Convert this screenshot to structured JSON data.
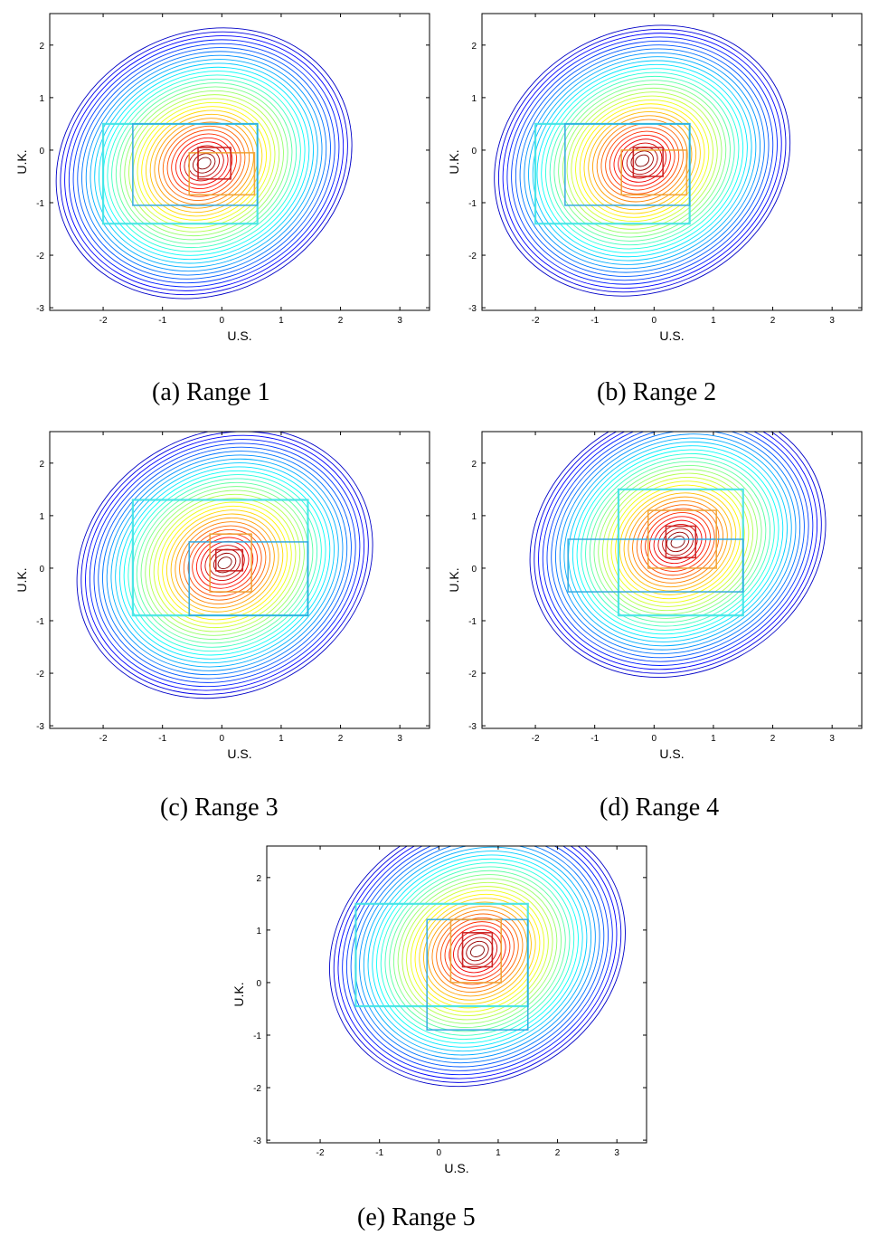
{
  "chart_data": [
    {
      "type": "contour",
      "caption": "(a) Range 1",
      "xlabel": "U.S.",
      "ylabel": "U.K.",
      "xlim": [
        -2.9,
        3.5
      ],
      "ylim": [
        -3.05,
        2.6
      ],
      "xticks": [
        -2,
        -1,
        0,
        1,
        2,
        3
      ],
      "yticks": [
        -3,
        -2,
        -1,
        0,
        1,
        2
      ],
      "peak": [
        -0.3,
        -0.25
      ],
      "boxes": [
        [
          -2.0,
          0.6,
          -1.4,
          0.5
        ],
        [
          -1.5,
          0.6,
          -1.05,
          0.5
        ],
        [
          -0.55,
          0.55,
          -0.85,
          -0.05
        ],
        [
          -0.4,
          0.15,
          -0.55,
          0.05
        ]
      ],
      "grid": false
    },
    {
      "type": "contour",
      "caption": "(b) Range 2",
      "xlabel": "U.S.",
      "ylabel": "U.K.",
      "xlim": [
        -2.9,
        3.5
      ],
      "ylim": [
        -3.05,
        2.6
      ],
      "xticks": [
        -2,
        -1,
        0,
        1,
        2,
        3
      ],
      "yticks": [
        -3,
        -2,
        -1,
        0,
        1,
        2
      ],
      "peak": [
        -0.2,
        -0.2
      ],
      "boxes": [
        [
          -2.0,
          0.6,
          -1.4,
          0.5
        ],
        [
          -1.5,
          0.6,
          -1.05,
          0.5
        ],
        [
          -0.55,
          0.55,
          -0.85,
          0.0
        ],
        [
          -0.35,
          0.15,
          -0.5,
          0.05
        ]
      ],
      "grid": false
    },
    {
      "type": "contour",
      "caption": "(c) Range 3",
      "xlabel": "U.S.",
      "ylabel": "U.K.",
      "xlim": [
        -2.9,
        3.5
      ],
      "ylim": [
        -3.05,
        2.6
      ],
      "xticks": [
        -2,
        -1,
        0,
        1,
        2,
        3
      ],
      "yticks": [
        -3,
        -2,
        -1,
        0,
        1,
        2
      ],
      "peak": [
        0.05,
        0.1
      ],
      "boxes": [
        [
          -1.5,
          1.45,
          -0.9,
          1.3
        ],
        [
          -0.55,
          1.45,
          -0.9,
          0.5
        ],
        [
          -0.2,
          0.5,
          -0.45,
          0.65
        ],
        [
          -0.1,
          0.35,
          -0.05,
          0.35
        ]
      ],
      "grid": false
    },
    {
      "type": "contour",
      "caption": "(d) Range 4",
      "xlabel": "U.S.",
      "ylabel": "U.K.",
      "xlim": [
        -2.9,
        3.5
      ],
      "ylim": [
        -3.05,
        2.6
      ],
      "xticks": [
        -2,
        -1,
        0,
        1,
        2,
        3
      ],
      "yticks": [
        -3,
        -2,
        -1,
        0,
        1,
        2
      ],
      "peak": [
        0.4,
        0.5
      ],
      "boxes": [
        [
          -0.6,
          1.5,
          -0.9,
          1.5
        ],
        [
          -1.45,
          1.5,
          -0.45,
          0.55
        ],
        [
          -0.1,
          1.05,
          0.0,
          1.1
        ],
        [
          0.2,
          0.7,
          0.2,
          0.8
        ]
      ],
      "grid": false
    },
    {
      "type": "contour",
      "caption": "(e) Range 5",
      "xlabel": "U.S.",
      "ylabel": "U.K.",
      "xlim": [
        -2.9,
        3.5
      ],
      "ylim": [
        -3.05,
        2.6
      ],
      "xticks": [
        -2,
        -1,
        0,
        1,
        2,
        3
      ],
      "yticks": [
        -3,
        -2,
        -1,
        0,
        1,
        2
      ],
      "peak": [
        0.65,
        0.6
      ],
      "boxes": [
        [
          -1.4,
          1.5,
          -0.45,
          1.5
        ],
        [
          -0.2,
          1.5,
          -0.9,
          1.2
        ],
        [
          0.2,
          1.05,
          0.0,
          1.2
        ],
        [
          0.4,
          0.9,
          0.3,
          0.95
        ]
      ],
      "grid": false
    }
  ]
}
